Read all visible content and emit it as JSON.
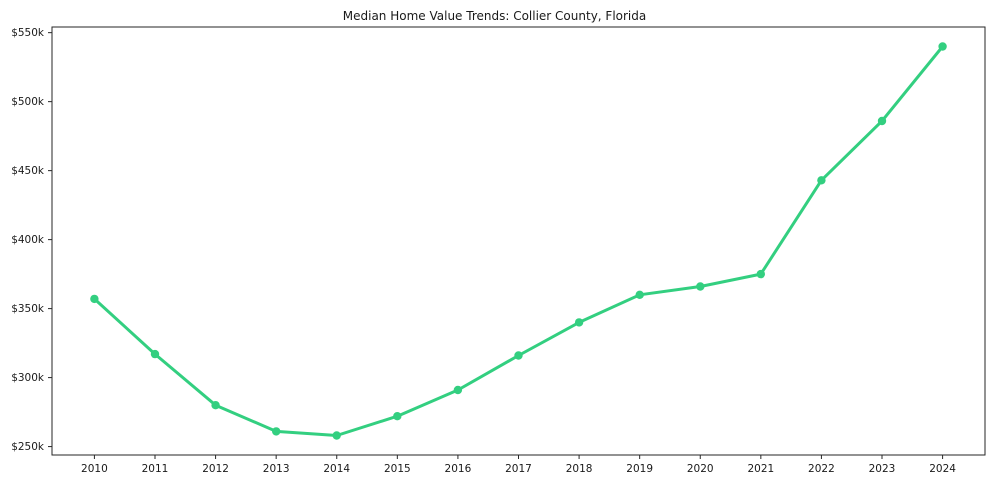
{
  "chart": {
    "title": "Median Home Value Trends: Collier County, Florida"
  },
  "chart_data": {
    "type": "line",
    "title": "Median Home Value Trends: Collier County, Florida",
    "categories": [
      2010,
      2011,
      2012,
      2013,
      2014,
      2015,
      2016,
      2017,
      2018,
      2019,
      2020,
      2021,
      2022,
      2023,
      2024
    ],
    "values": [
      357,
      317,
      280,
      261,
      258,
      272,
      291,
      316,
      340,
      360,
      366,
      375,
      443,
      486,
      540
    ],
    "values_unit": "thousand USD",
    "xlabel": "",
    "ylabel": "",
    "ylim": [
      250,
      550
    ],
    "ytick_values": [
      250,
      300,
      350,
      400,
      450,
      500,
      550
    ],
    "ytick_labels": [
      "$250k",
      "$300k",
      "$350k",
      "$400k",
      "$450k",
      "$500k",
      "$550k"
    ],
    "xtick_labels": [
      "2010",
      "2011",
      "2012",
      "2013",
      "2014",
      "2015",
      "2016",
      "2017",
      "2018",
      "2019",
      "2020",
      "2021",
      "2022",
      "2023",
      "2024"
    ],
    "grid": false,
    "legend": false,
    "line_color": "#33cf80",
    "marker": "circle",
    "axis_color": "#262626",
    "text_color": "#1a1a1a"
  }
}
